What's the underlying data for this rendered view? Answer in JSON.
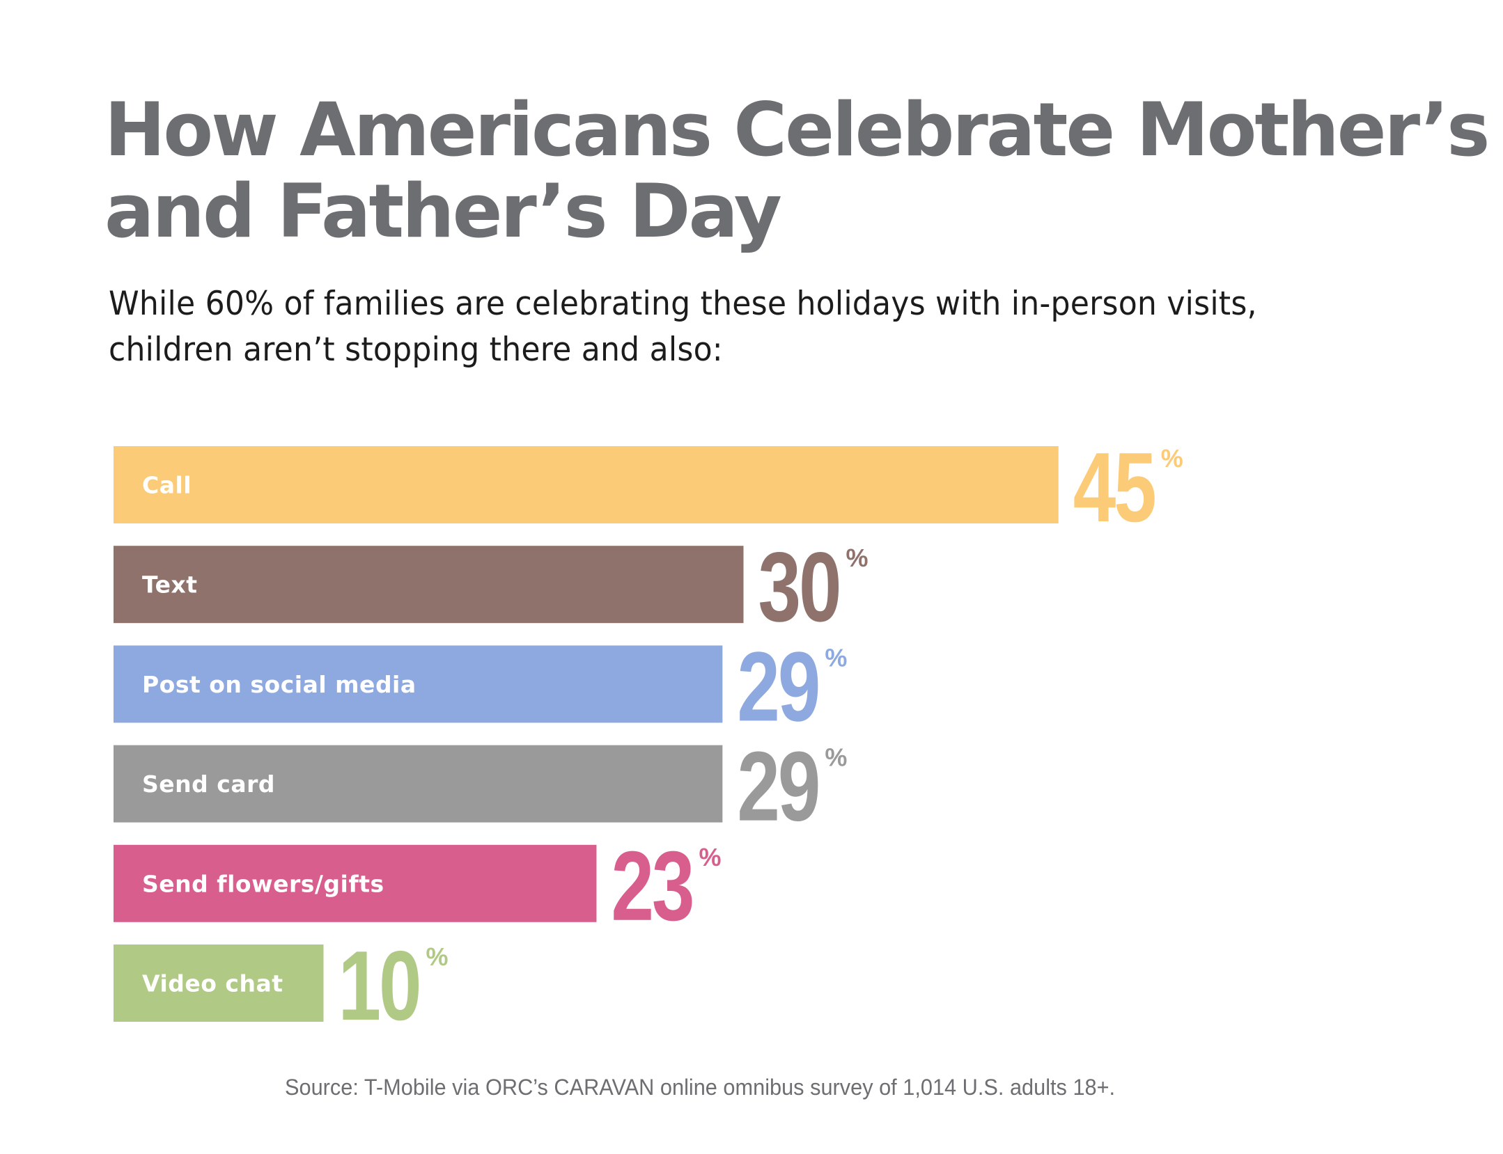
{
  "header": {
    "title_lines": [
      "How Americans Celebrate Mother’s",
      "and Father’s Day"
    ],
    "subtitle_lines": [
      "While 60% of families are celebrating these holidays with in-person visits,",
      "children aren’t stopping there and also:"
    ]
  },
  "chart_data": {
    "type": "bar",
    "orientation": "horizontal",
    "title": "How Americans Celebrate Mother’s and Father’s Day",
    "subtitle": "While 60% of families are celebrating these holidays with in-person visits, children aren’t stopping there and also:",
    "categories": [
      "Call",
      "Text",
      "Post on social media",
      "Send card",
      "Send flowers/gifts",
      "Video chat"
    ],
    "values": [
      45,
      30,
      29,
      29,
      23,
      10
    ],
    "value_suffix": "%",
    "colors": [
      "#FCCB78",
      "#8E726B",
      "#8EA9DF",
      "#9A9A9A",
      "#D85E8E",
      "#B0CA86"
    ],
    "label_color": "#FFFFFF",
    "xlabel": "",
    "ylabel": "",
    "xlim": [
      0,
      100
    ],
    "grid": false,
    "legend": "none",
    "source": "Source: T-Mobile via ORC’s CARAVAN online omnibus survey of 1,014  U.S. adults 18+."
  },
  "footer": {
    "source": "Source: T-Mobile via ORC’s CARAVAN online omnibus survey of 1,014  U.S. adults 18+."
  }
}
